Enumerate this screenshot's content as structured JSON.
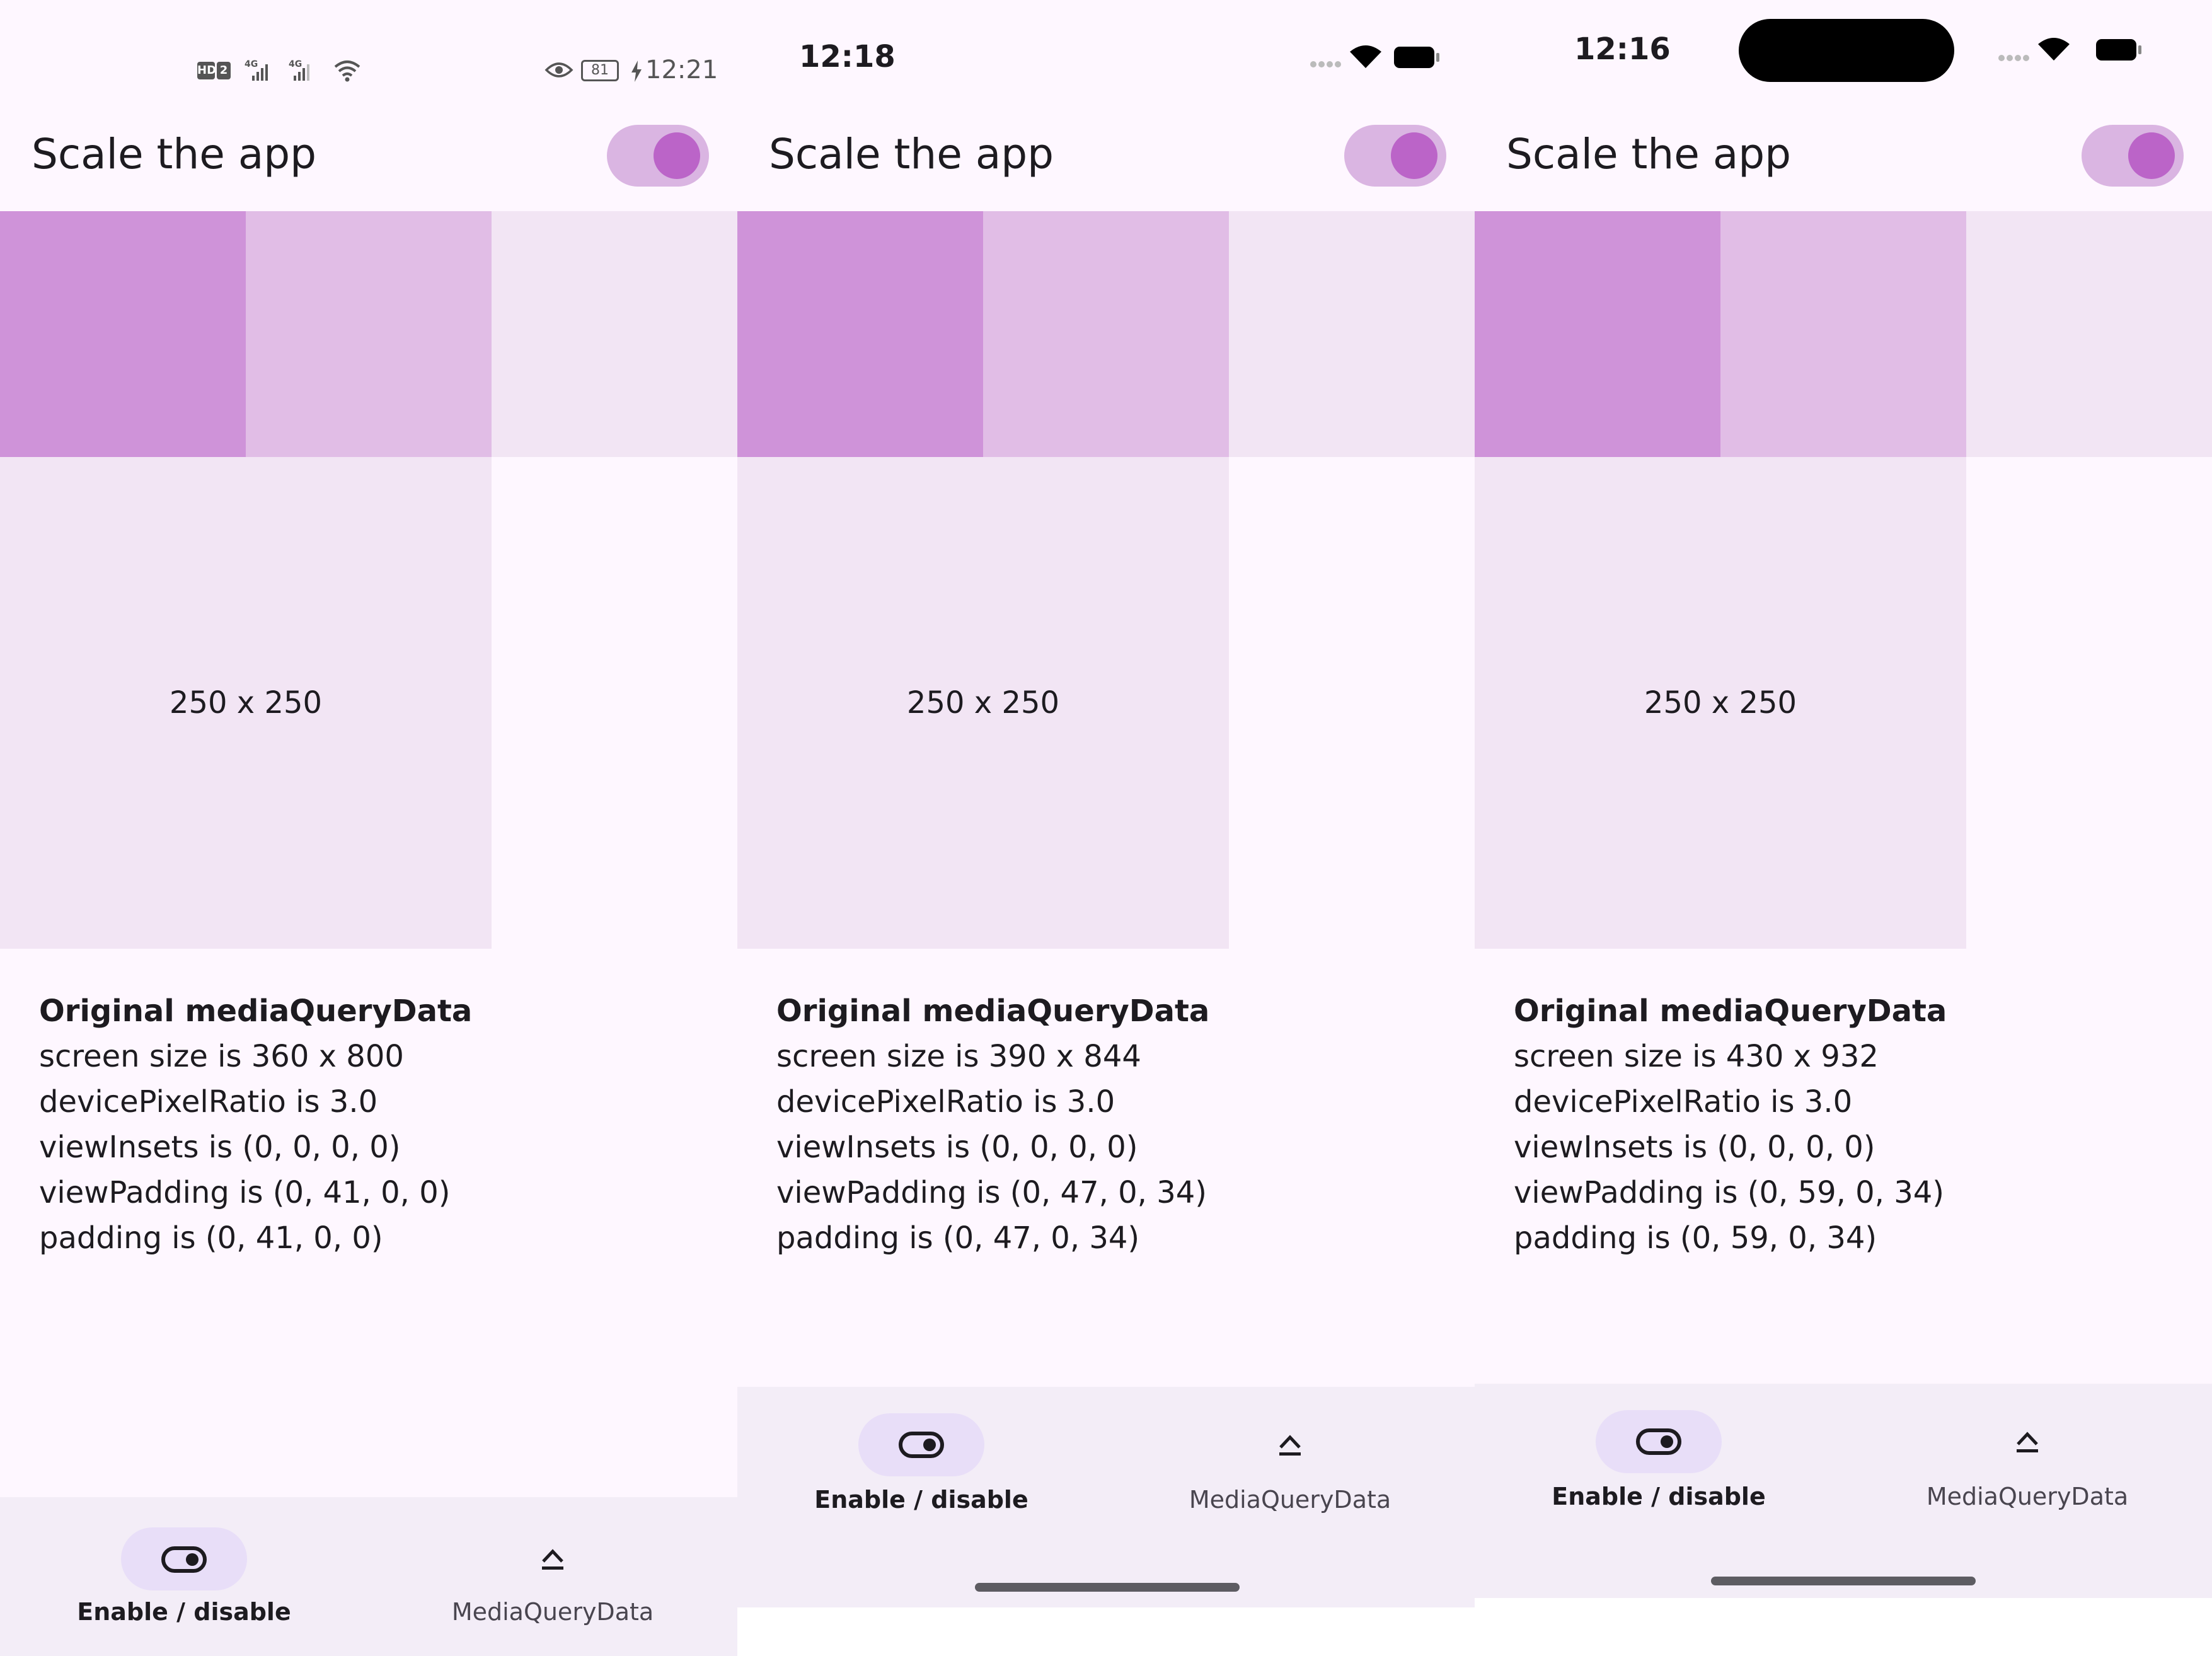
{
  "colors": {
    "background": "#fef7ff",
    "tile_dark": "#cf93d9",
    "tile_mid": "#e1bde6",
    "tile_light": "#f2e5f4",
    "switch_track": "#dab5e2",
    "switch_thumb": "#bb64c8",
    "nav_bar": "#f3edf7",
    "nav_indicator": "#e8def8"
  },
  "phones": [
    {
      "platform": "android",
      "status_time": "12:21",
      "status_battery": "81",
      "status_network_badge": "HD",
      "status_sim_badge": "2",
      "status_network_type_1": "4G",
      "status_network_type_2": "4G",
      "title": "Scale the app",
      "box_label": "250 x 250",
      "info_title": "Original mediaQueryData",
      "info_lines": [
        "screen size is 360 x 800",
        "devicePixelRatio is 3.0",
        "viewInsets is (0, 0, 0, 0)",
        "viewPadding is (0, 41, 0, 0)",
        "padding is (0, 41, 0, 0)"
      ],
      "nav_items": [
        {
          "label": "Enable / disable",
          "icon": "toggle-icon",
          "selected": true
        },
        {
          "label": "MediaQueryData",
          "icon": "eject-icon",
          "selected": false
        }
      ]
    },
    {
      "platform": "ios",
      "status_time": "12:18",
      "title": "Scale the app",
      "box_label": "250 x 250",
      "info_title": "Original mediaQueryData",
      "info_lines": [
        "screen size is 390 x 844",
        "devicePixelRatio is 3.0",
        "viewInsets is (0, 0, 0, 0)",
        "viewPadding is (0, 47, 0, 34)",
        "padding is (0, 47, 0, 34)"
      ],
      "nav_items": [
        {
          "label": "Enable / disable",
          "icon": "toggle-icon",
          "selected": true
        },
        {
          "label": "MediaQueryData",
          "icon": "eject-icon",
          "selected": false
        }
      ]
    },
    {
      "platform": "ios-dynamic-island",
      "status_time": "12:16",
      "title": "Scale the app",
      "box_label": "250 x 250",
      "info_title": "Original mediaQueryData",
      "info_lines": [
        "screen size is 430 x 932",
        "devicePixelRatio is 3.0",
        "viewInsets is (0, 0, 0, 0)",
        "viewPadding is (0, 59, 0, 34)",
        "padding is (0, 59, 0, 34)"
      ],
      "nav_items": [
        {
          "label": "Enable / disable",
          "icon": "toggle-icon",
          "selected": true
        },
        {
          "label": "MediaQueryData",
          "icon": "eject-icon",
          "selected": false
        }
      ]
    }
  ]
}
